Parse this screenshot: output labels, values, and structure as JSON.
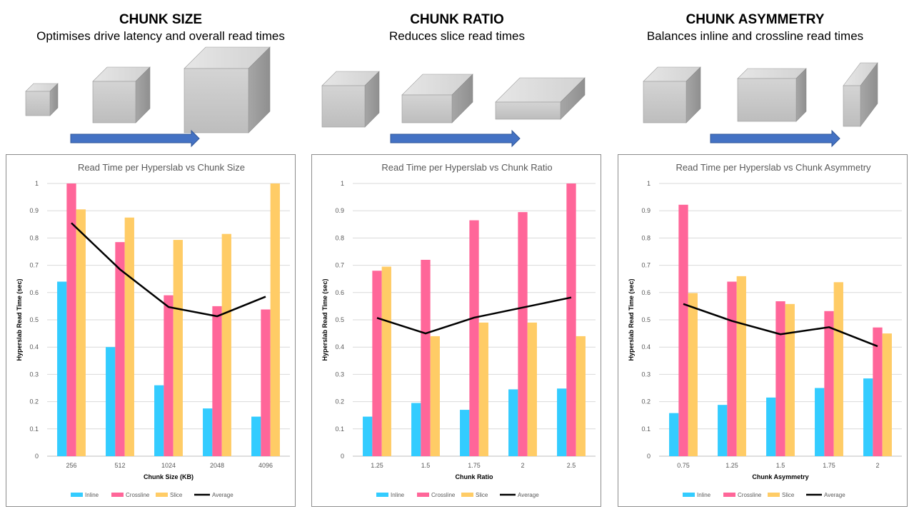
{
  "colors": {
    "inline": "#33CCFF",
    "crossline": "#FF6699",
    "slice": "#FFCC66",
    "average": "#000000",
    "arrow": "#4472C4",
    "cube": "#BFBFBF"
  },
  "sections": [
    {
      "heading": "CHUNK SIZE",
      "subheading": "Optimises drive latency and overall read times"
    },
    {
      "heading": "CHUNK RATIO",
      "subheading": "Reduces slice read times"
    },
    {
      "heading": "CHUNK ASYMMETRY",
      "subheading": "Balances inline and crossline read times"
    }
  ],
  "chart_data": [
    {
      "type": "bar",
      "title": "Read Time per Hyperslab vs Chunk Size",
      "xlabel": "Chunk Size (KB)",
      "ylabel": "Hyperslab Read Time (sec)",
      "ylim": [
        0,
        1
      ],
      "yticks": [
        "0",
        "0.1",
        "0.2",
        "0.3",
        "0.4",
        "0.5",
        "0.6",
        "0.7",
        "0.8",
        "0.9",
        "1"
      ],
      "categories": [
        "256",
        "512",
        "1024",
        "2048",
        "4096"
      ],
      "series": [
        {
          "name": "Inline",
          "kind": "bar",
          "values": [
            0.64,
            0.4,
            0.26,
            0.175,
            0.145
          ]
        },
        {
          "name": "Crossline",
          "kind": "bar",
          "values": [
            1.0,
            0.785,
            0.59,
            0.55,
            0.538
          ]
        },
        {
          "name": "Slice",
          "kind": "bar",
          "values": [
            0.905,
            0.875,
            0.793,
            0.815,
            1.0
          ]
        },
        {
          "name": "Average",
          "kind": "line",
          "values": [
            0.855,
            0.685,
            0.547,
            0.513,
            0.585
          ]
        }
      ],
      "grid": true,
      "legend": "bottom"
    },
    {
      "type": "bar",
      "title": "Read Time per Hyperslab vs Chunk Ratio",
      "xlabel": "Chunk Ratio",
      "ylabel": "Hyperslab Read Time (sec)",
      "ylim": [
        0,
        1
      ],
      "yticks": [
        "0",
        "0.1",
        "0.2",
        "0.3",
        "0.4",
        "0.5",
        "0.6",
        "0.7",
        "0.8",
        "0.9",
        "1"
      ],
      "categories": [
        "1.25",
        "1.5",
        "1.75",
        "2",
        "2.5"
      ],
      "series": [
        {
          "name": "Inline",
          "kind": "bar",
          "values": [
            0.145,
            0.195,
            0.17,
            0.245,
            0.248
          ]
        },
        {
          "name": "Crossline",
          "kind": "bar",
          "values": [
            0.68,
            0.72,
            0.865,
            0.895,
            1.0
          ]
        },
        {
          "name": "Slice",
          "kind": "bar",
          "values": [
            0.695,
            0.44,
            0.49,
            0.49,
            0.44
          ]
        },
        {
          "name": "Average",
          "kind": "line",
          "values": [
            0.507,
            0.45,
            0.508,
            0.545,
            0.582
          ]
        }
      ],
      "grid": true,
      "legend": "bottom"
    },
    {
      "type": "bar",
      "title": "Read Time per Hyperslab vs Chunk Asymmetry",
      "xlabel": "Chunk Asymmetry",
      "ylabel": "Hyperslab Read Time (sec)",
      "ylim": [
        0,
        1
      ],
      "yticks": [
        "0",
        "0.1",
        "0.2",
        "0.3",
        "0.4",
        "0.5",
        "0.6",
        "0.7",
        "0.8",
        "0.9",
        "1"
      ],
      "categories": [
        "0.75",
        "1.25",
        "1.5",
        "1.75",
        "2"
      ],
      "series": [
        {
          "name": "Inline",
          "kind": "bar",
          "values": [
            0.158,
            0.188,
            0.215,
            0.25,
            0.285
          ]
        },
        {
          "name": "Crossline",
          "kind": "bar",
          "values": [
            0.922,
            0.64,
            0.568,
            0.532,
            0.472
          ]
        },
        {
          "name": "Slice",
          "kind": "bar",
          "values": [
            0.598,
            0.66,
            0.558,
            0.638,
            0.45
          ]
        },
        {
          "name": "Average",
          "kind": "line",
          "values": [
            0.558,
            0.496,
            0.447,
            0.473,
            0.403
          ]
        }
      ],
      "grid": true,
      "legend": "bottom"
    }
  ]
}
